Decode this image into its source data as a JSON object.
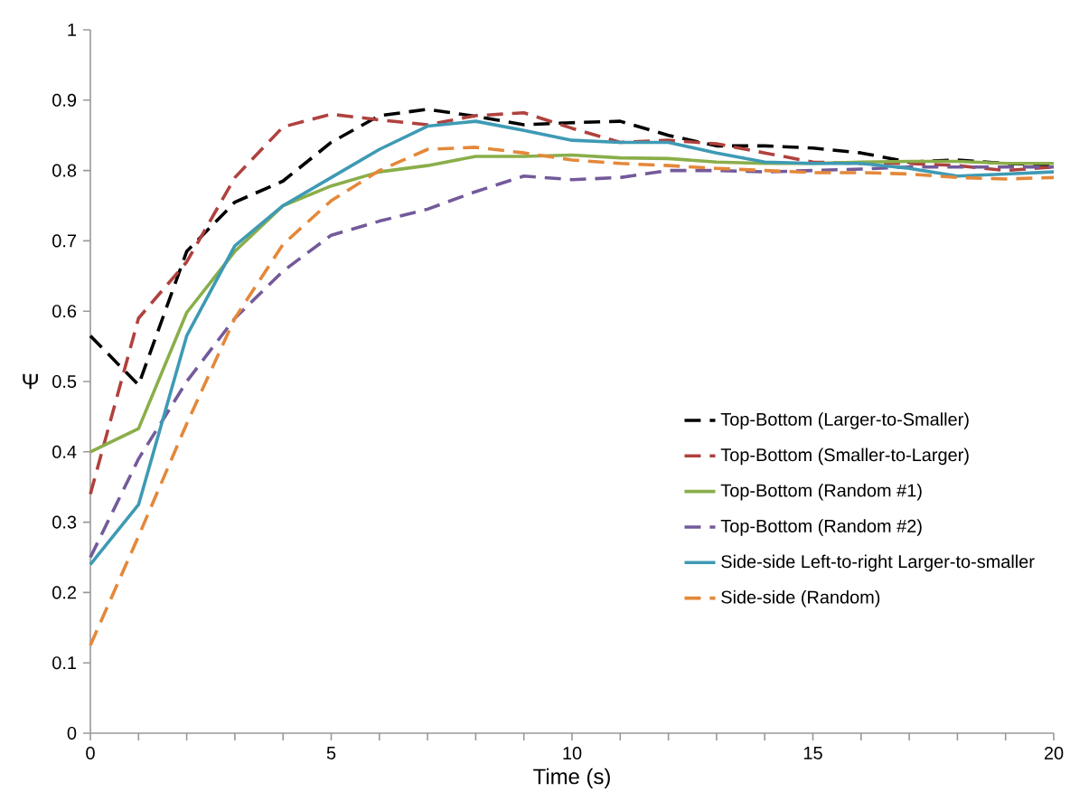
{
  "chart_data": {
    "type": "line",
    "xlabel": "Time (s)",
    "ylabel": "Ψ",
    "x": [
      0,
      1,
      2,
      3,
      4,
      5,
      6,
      7,
      8,
      9,
      10,
      11,
      12,
      13,
      14,
      15,
      16,
      17,
      18,
      19,
      20
    ],
    "series": [
      {
        "name": "Top-Bottom (Larger-to-Smaller)",
        "color": "#000000",
        "line_style": "dashed",
        "values": [
          0.565,
          0.495,
          0.685,
          0.755,
          0.785,
          0.84,
          0.878,
          0.887,
          0.877,
          0.865,
          0.868,
          0.87,
          0.85,
          0.835,
          0.835,
          0.832,
          0.825,
          0.812,
          0.815,
          0.81,
          0.808
        ]
      },
      {
        "name": "Top-Bottom (Smaller-to-Larger)",
        "color": "#b0413e",
        "line_style": "dashed",
        "values": [
          0.34,
          0.59,
          0.67,
          0.79,
          0.862,
          0.88,
          0.872,
          0.865,
          0.878,
          0.882,
          0.86,
          0.84,
          0.843,
          0.838,
          0.825,
          0.812,
          0.81,
          0.81,
          0.807,
          0.8,
          0.805
        ]
      },
      {
        "name": "Top-Bottom (Random #1)",
        "color": "#8aae4a",
        "line_style": "solid",
        "values": [
          0.4,
          0.433,
          0.598,
          0.685,
          0.75,
          0.778,
          0.798,
          0.807,
          0.82,
          0.82,
          0.822,
          0.818,
          0.817,
          0.812,
          0.81,
          0.81,
          0.812,
          0.813,
          0.813,
          0.81,
          0.81
        ]
      },
      {
        "name": "Top-Bottom (Random #2)",
        "color": "#735a9a",
        "line_style": "dashed",
        "values": [
          0.25,
          0.39,
          0.5,
          0.59,
          0.657,
          0.708,
          0.728,
          0.745,
          0.77,
          0.792,
          0.787,
          0.79,
          0.8,
          0.8,
          0.798,
          0.8,
          0.802,
          0.805,
          0.805,
          0.805,
          0.805
        ]
      },
      {
        "name": "Side-side Left-to-right Larger-to-smaller",
        "color": "#3e9ab4",
        "line_style": "solid",
        "values": [
          0.24,
          0.325,
          0.565,
          0.693,
          0.75,
          0.79,
          0.83,
          0.863,
          0.87,
          0.857,
          0.843,
          0.84,
          0.84,
          0.825,
          0.812,
          0.81,
          0.81,
          0.803,
          0.792,
          0.795,
          0.798
        ]
      },
      {
        "name": "Side-side (Random)",
        "color": "#e4883a",
        "line_style": "dashed",
        "values": [
          0.125,
          0.28,
          0.44,
          0.59,
          0.695,
          0.757,
          0.8,
          0.83,
          0.833,
          0.825,
          0.815,
          0.81,
          0.807,
          0.803,
          0.8,
          0.797,
          0.797,
          0.795,
          0.79,
          0.788,
          0.79
        ]
      }
    ],
    "xlim": [
      0,
      20
    ],
    "xticks": [
      0,
      {
        "value": 1,
        "label": null
      },
      {
        "value": 2,
        "label": null
      },
      {
        "value": 3,
        "label": null
      },
      {
        "value": 4,
        "label": null
      },
      5,
      {
        "value": 6,
        "label": null
      },
      {
        "value": 7,
        "label": null
      },
      {
        "value": 8,
        "label": null
      },
      {
        "value": 9,
        "label": null
      },
      10,
      {
        "value": 11,
        "label": null
      },
      {
        "value": 12,
        "label": null
      },
      {
        "value": 13,
        "label": null
      },
      {
        "value": 14,
        "label": null
      },
      15,
      {
        "value": 16,
        "label": null
      },
      {
        "value": 17,
        "label": null
      },
      {
        "value": 18,
        "label": null
      },
      {
        "value": 19,
        "label": null
      },
      20
    ],
    "ylim": [
      0,
      1
    ],
    "yticks": [
      0,
      0.1,
      0.2,
      0.3,
      0.4,
      0.5,
      0.6,
      0.7,
      0.8,
      0.9,
      1
    ],
    "grid": false,
    "legend": "right"
  }
}
